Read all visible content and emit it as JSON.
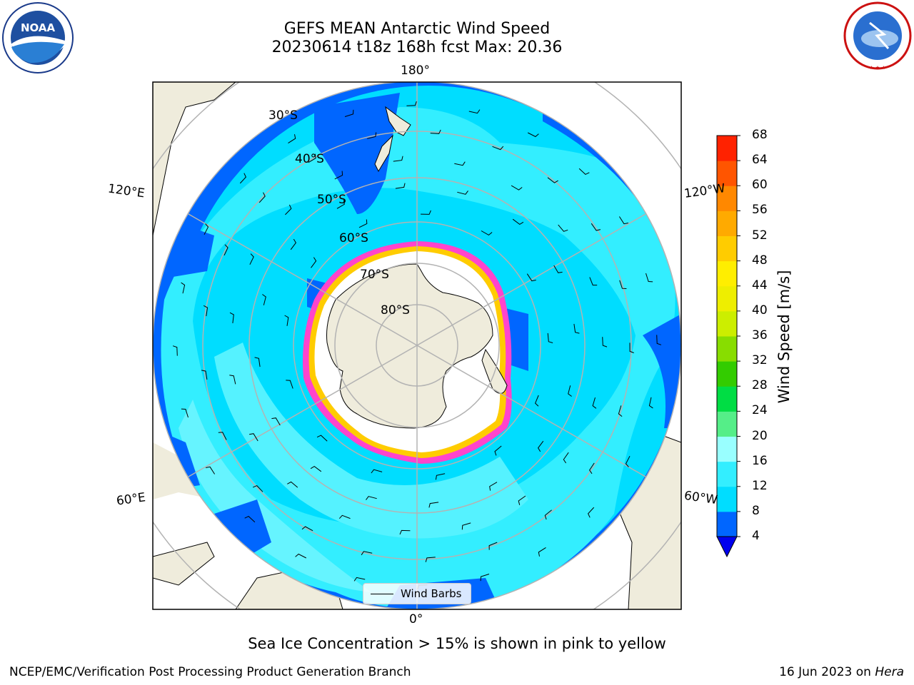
{
  "title": {
    "line1": "GEFS MEAN Antarctic Wind Speed",
    "line2": "20230614 t18z 168h fcst   Max: 20.36"
  },
  "logos": {
    "left": "NOAA",
    "left_ring_text": "NATIONAL OCEANIC AND ATMOSPHERIC ADMINISTRATION · U.S. DEPARTMENT OF COMMERCE",
    "right_ring_text": "NATIONAL WEATHER SERVICE"
  },
  "map": {
    "projection": "south-polar-stereographic",
    "longitude_labels": {
      "top": "180°",
      "bottom": "0°",
      "left_upper": "120°E",
      "right_upper": "120°W",
      "left_lower": "60°E",
      "right_lower": "60°W"
    },
    "latitude_labels": [
      "30°S",
      "40°S",
      "50°S",
      "60°S",
      "70°S",
      "80°S"
    ],
    "legend_label": "Wind Barbs"
  },
  "colorbar": {
    "title": "Wind Speed [m/s]",
    "ticks": [
      "4",
      "8",
      "12",
      "16",
      "20",
      "24",
      "28",
      "32",
      "36",
      "40",
      "44",
      "48",
      "52",
      "56",
      "60",
      "64",
      "68"
    ],
    "colors": [
      "#0066ff",
      "#00ddff",
      "#33eeff",
      "#99ffff",
      "#55ee88",
      "#00dd44",
      "#33cc00",
      "#88dd00",
      "#ccee00",
      "#eeee00",
      "#ffee00",
      "#ffcc00",
      "#ffaa00",
      "#ff8800",
      "#ff5500",
      "#ff2200"
    ],
    "under_color": "#0000ee"
  },
  "chart_data": {
    "type": "heatmap",
    "title": "GEFS MEAN Antarctic Wind Speed",
    "subtitle": "20230614 t18z 168h fcst   Max: 20.36",
    "variable": "Wind Speed [m/s]",
    "max_value": 20.36,
    "colorbar_range": [
      4,
      68
    ],
    "colorbar_step": 4,
    "overlay": "Sea Ice Concentration > 15%"
  },
  "caption": "Sea Ice Concentration > 15% is shown in pink to yellow",
  "footer": {
    "left": "NCEP/EMC/Verification Post Processing Product Generation Branch",
    "right_date": "16 Jun 2023 on ",
    "right_host": "Hera"
  }
}
